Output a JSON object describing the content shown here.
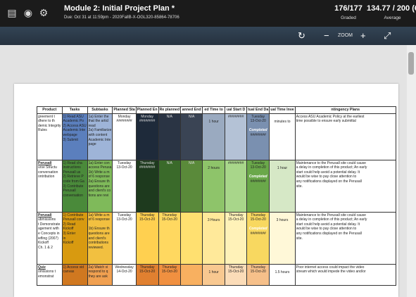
{
  "topbar": {
    "title": "Module 2: Initial Project Plan *",
    "due": "Due: Oct 31 at 11:59pm - 2020FallB-X-OGL320-85864-78706",
    "graded_count": "176/177",
    "graded_label": "Graded",
    "average_value": "134.77 / 200 (67%",
    "average_label": "Average"
  },
  "toolbar": {
    "zoom_label": "ZOOM",
    "minus": "−",
    "plus": "+",
    "rotate": "↻",
    "expand": "⤢"
  },
  "table": {
    "headers": [
      "Product",
      "Tasks",
      "Subtasks",
      "Planned Sta",
      "Planned En",
      "Re planned",
      "anned End",
      "ed Time to",
      "ual Start D",
      "tual End Da",
      "ual Time Inve",
      "ntingency Plans"
    ],
    "rows": [
      {
        "product": [
          "greement t",
          "dhere to th",
          "demic Integrity",
          "Rules"
        ],
        "tasks": [
          "1) Read ASU",
          "Academic Po",
          "2) Access ASU",
          "Academic Inte",
          "webpage",
          "3) Submit"
        ],
        "subtasks": [
          "1a) Enter the",
          "that the articl",
          "read",
          "2a) Familiarize",
          "with content",
          "Academic Inte",
          "page"
        ],
        "planned_start": [
          "Monday",
          "########"
        ],
        "planned_end": [
          "Monday",
          "########"
        ],
        "re_planned": [
          "N/A"
        ],
        "re_planned_end": [
          "N/A"
        ],
        "est_time": [
          "1 hour"
        ],
        "actual_start": [
          "########"
        ],
        "actual_end": [
          "Tuesday",
          "13-Oct-20",
          "",
          "Completed",
          "########"
        ],
        "actual_time": [
          "minutes to"
        ],
        "contingency": [
          "Access ASU Academic Policy at the earliest",
          "time possible to ensure early submittal"
        ]
      },
      {
        "product": [
          "Perusall",
          "urse Structu",
          "conversation",
          "ontribution"
        ],
        "tasks": [
          "1) Read cha",
          "instructions",
          "Perusall us",
          "2) Retrieve P",
          "code from Ga",
          "3) Contribute",
          "Perusall",
          "conversation"
        ],
        "subtasks": [
          "1a) Enter con",
          "access Perusa",
          "1b) Write a m",
          "of 6 response",
          "2a) Ensure th",
          "questions are",
          "and client's co",
          "tions are revi"
        ],
        "planned_start": [
          "Tuesday",
          "13-Oct-20"
        ],
        "planned_end": [
          "Thursday",
          "########"
        ],
        "re_planned": [
          "N/A"
        ],
        "re_planned_end": [
          "N/A"
        ],
        "est_time": [
          "2 hours"
        ],
        "actual_start": [
          "########"
        ],
        "actual_end": [
          "Tuesday",
          "13-Oct-20",
          "",
          "Completed",
          "########"
        ],
        "actual_time": [
          "1 hour"
        ],
        "contingency": [
          "Maintenance to the Perusall site could cause",
          "a delay in completion of this product; An early",
          "start could help avoid a potential delay. It",
          "would be wise to pay close attention to",
          "any notifications displayed on the Perusall",
          "site."
        ]
      },
      {
        "product": [
          "Perusall",
          "ubmissions",
          "t Demonstrate",
          "agement with",
          "e Concepts in",
          "iefling (2007)",
          "Kickoff",
          "Ch. 1 & 2"
        ],
        "tasks": [
          "1) Contribute",
          "Perusall conv",
          "2) Read",
          "Kickoff",
          "3) Enter",
          "in",
          "Kickoff"
        ],
        "subtasks": [
          "1a) Write a m",
          "of 6 response",
          "",
          "1b) Ensure th",
          "questions are",
          "and client's",
          "contributions",
          "reviewed."
        ],
        "planned_start": [
          "Tuesday",
          "13-Oct-20"
        ],
        "planned_end": [
          "Thursday",
          "15-Oct-20"
        ],
        "re_planned": [
          "Thursday",
          "15-Oct-20"
        ],
        "re_planned_end": [
          "",
          ""
        ],
        "est_time": [
          "3 Hours"
        ],
        "actual_start": [
          "Thursday",
          "15-Oct-20"
        ],
        "actual_end": [
          "Thursday",
          "15-Oct-20",
          "",
          "Completed",
          "########"
        ],
        "actual_time": [
          "3 hours"
        ],
        "contingency": [
          "Maintenance to the Perusall site could cause",
          "a delay in completion of this product; An early",
          "start could help avoid a potential delay. It",
          "would be wise to pay close attention to",
          "any notifications displayed on the Perusall",
          "site."
        ]
      },
      {
        "product": [
          "Quiz",
          "omissions t",
          "emonstrat"
        ],
        "tasks": [
          "1) Access vid",
          "canvas"
        ],
        "subtasks": [
          "2a) Watch vi",
          "respond to q",
          "they are ask"
        ],
        "planned_start": [
          "Wednesday",
          "14-Oct-20"
        ],
        "planned_end": [
          "Thursday",
          "15-Oct-20"
        ],
        "re_planned": [
          "Thursday",
          "15-Oct-20"
        ],
        "re_planned_end": [
          ""
        ],
        "est_time": [
          "1 hour"
        ],
        "actual_start": [
          "Thursday",
          "15-Oct-20"
        ],
        "actual_end": [
          "Thursday",
          "15-Oct-20"
        ],
        "actual_time": [
          "1.5 hours"
        ],
        "contingency": [
          "Poor internet access could impact the video",
          "stream which would impede the video and/or"
        ]
      }
    ]
  },
  "colors": {
    "row1": [
      "#ffffff",
      "#5b7fbd",
      "#9eb4d8",
      "#ffffff",
      "#1e2a3a",
      "#2a3444",
      "#3a4454",
      "#9aaac0",
      "#b4c2d6",
      "#7a90b0",
      "#ffffff",
      "#ffffff"
    ],
    "row2": [
      "#ffffff",
      "#4a8a3a",
      "#7fba5a",
      "#ffffff",
      "#1e3a1e",
      "#3a6a2a",
      "#5a8a3a",
      "#8ec46a",
      "#a8d68a",
      "#6aa84a",
      "#d6e8c6",
      "#ffffff"
    ],
    "row3": [
      "#ffffff",
      "#d89a10",
      "#f2c040",
      "#ffffff",
      "#ffd050",
      "#ffd860",
      "#ffe070",
      "#ffe99a",
      "#fff2b8",
      "#f8d860",
      "#fff8d8",
      "#ffffff"
    ],
    "row4": [
      "#ffffff",
      "#d07820",
      "#f0a050",
      "#ffffff",
      "#e08030",
      "#f09040",
      "#f8b060",
      "#f8c890",
      "#fbdcb8",
      "#f6c08a",
      "#ffffff",
      "#ffffff"
    ]
  }
}
